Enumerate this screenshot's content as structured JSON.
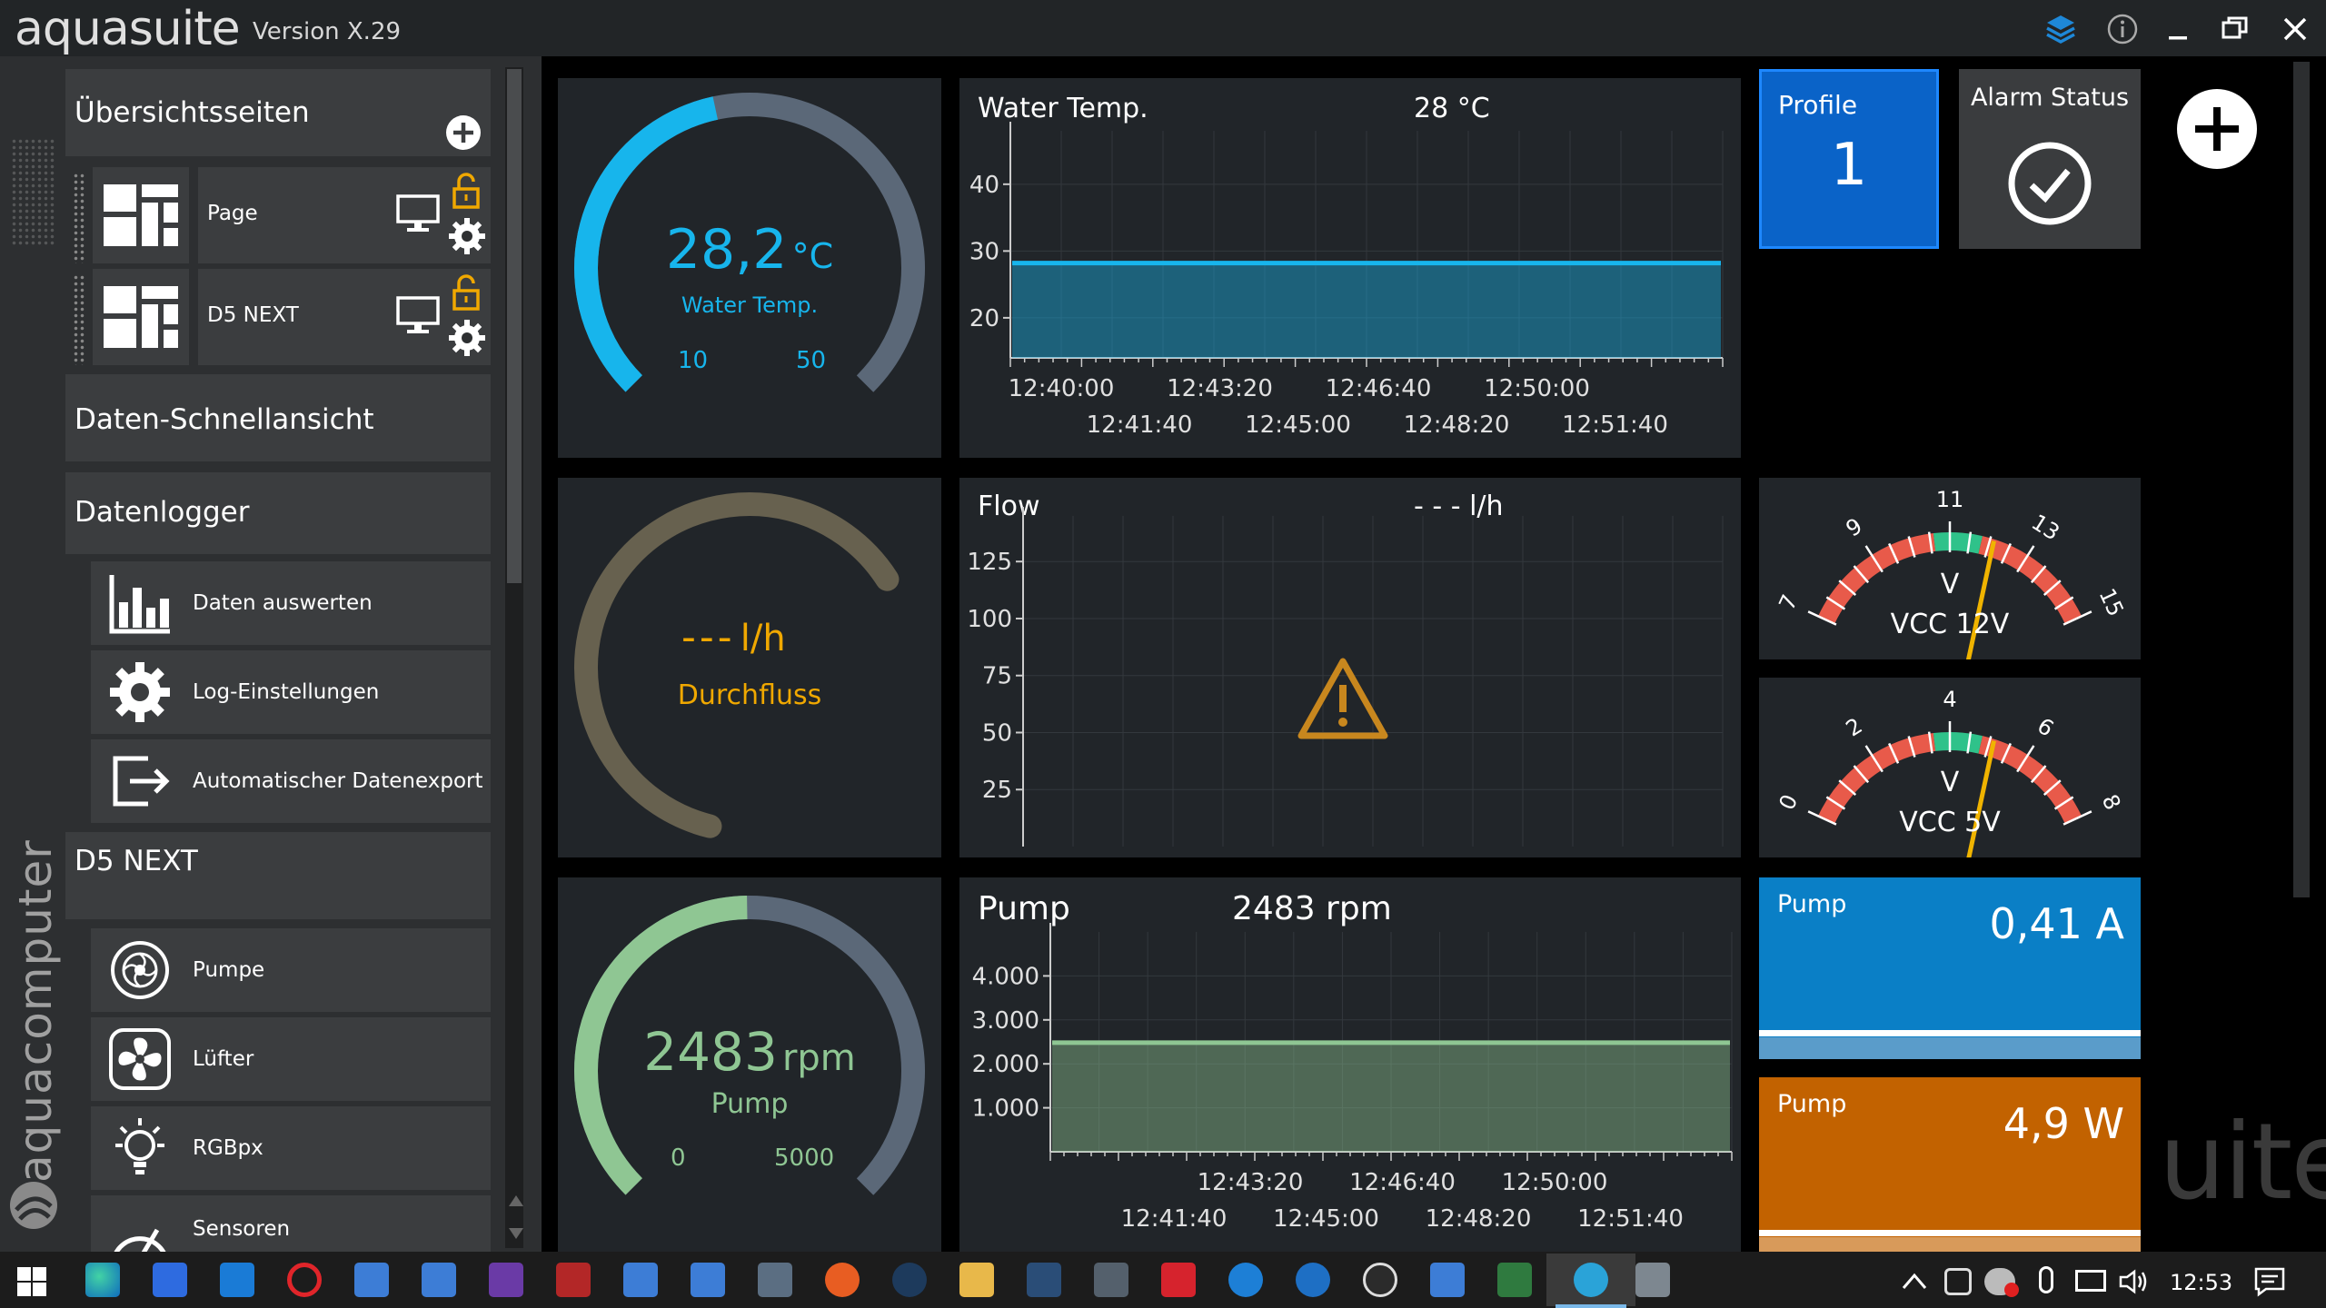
{
  "app": {
    "logo": "aquasuite",
    "version": "Version X.29"
  },
  "sidebar": {
    "overview": {
      "title": "Übersichtsseiten",
      "pages": [
        {
          "label": "Page"
        },
        {
          "label": "D5 NEXT"
        }
      ]
    },
    "quickview": {
      "title": "Daten-Schnellansicht"
    },
    "datalogger": {
      "title": "Datenlogger",
      "items": [
        {
          "label": "Daten auswerten",
          "icon": "bar-chart-icon"
        },
        {
          "label": "Log-Einstellungen",
          "icon": "gear-icon"
        },
        {
          "label": "Automatischer Datenexport",
          "icon": "export-icon"
        }
      ]
    },
    "device": {
      "title": "D5 NEXT",
      "items": [
        {
          "label": "Pumpe",
          "icon": "pump-icon"
        },
        {
          "label": "Lüfter",
          "icon": "fan-icon"
        },
        {
          "label": "RGBpx",
          "icon": "bulb-icon"
        },
        {
          "label": "Sensoren",
          "icon": "sensor-icon"
        }
      ]
    },
    "brand_vertical": "aquacomputer"
  },
  "gauges": {
    "water": {
      "value": "28,2",
      "unit": "°C",
      "label": "Water Temp.",
      "min": "10",
      "max": "50",
      "color": "#17b5ec",
      "fraction": 0.455
    },
    "flow": {
      "value": "---",
      "unit": "l/h",
      "label": "Durchfluss",
      "color": "#f0a800"
    },
    "pump": {
      "value": "2483",
      "unit": "rpm",
      "label": "Pump",
      "min": "0",
      "max": "5000",
      "color": "#8fc693",
      "fraction": 0.4966
    }
  },
  "charts": {
    "water": {
      "title": "Water Temp.",
      "value": "28 °C"
    },
    "flow": {
      "title": "Flow",
      "value": "- - - l/h"
    },
    "pump": {
      "title": "Pump",
      "value": "2483 rpm"
    }
  },
  "chart_data": [
    {
      "type": "area",
      "title": "Water Temp.",
      "value_label": "28 °C",
      "ylim": [
        14,
        48
      ],
      "yticks": [
        "40",
        "30",
        "20"
      ],
      "x_labels_top": [
        "12:40:00",
        "12:43:20",
        "12:46:40",
        "12:50:00"
      ],
      "x_labels_bottom": [
        "12:41:40",
        "12:45:00",
        "12:48:20",
        "12:51:40"
      ],
      "series": [
        {
          "values": [
            28.2,
            28.2,
            28.2,
            28.2,
            28.2,
            28.2,
            28.2,
            28.2
          ],
          "color": "#17b5ec"
        }
      ],
      "grid": true
    },
    {
      "type": "area",
      "title": "Flow",
      "value_label": "- - - l/h",
      "ylim": [
        0,
        145
      ],
      "yticks": [
        "125",
        "100",
        "75",
        "50",
        "25"
      ],
      "series": [],
      "warning": true,
      "grid": true
    },
    {
      "type": "area",
      "title": "Pump",
      "value_label": "2483 rpm",
      "ylim": [
        0,
        5000
      ],
      "yticks": [
        "4.000",
        "3.000",
        "2.000",
        "1.000"
      ],
      "x_labels_top": [
        "12:43:20",
        "12:46:40",
        "12:50:00"
      ],
      "x_labels_bottom": [
        "12:41:40",
        "12:45:00",
        "12:48:20",
        "12:51:40"
      ],
      "series": [
        {
          "values": [
            2483,
            2483,
            2483,
            2483,
            2483,
            2483,
            2483,
            2483
          ],
          "color": "#8fc693"
        }
      ],
      "grid": true
    }
  ],
  "tiles": {
    "profile": {
      "label": "Profile",
      "value": "1",
      "color": "#0a63c8"
    },
    "alarm": {
      "label": "Alarm Status",
      "icon": "check-circle-icon"
    },
    "pump_current": {
      "label": "Pump",
      "value": "0,41 A",
      "color": "#0a7fc6"
    },
    "pump_power": {
      "label": "Pump",
      "value": "4,9 W",
      "color": "#c26200"
    }
  },
  "meters": {
    "vcc12": {
      "ticks": [
        "7",
        "9",
        "11",
        "13",
        "15"
      ],
      "unit": "V",
      "label": "VCC 12V",
      "min": 7,
      "max": 15,
      "value": 12.1
    },
    "vcc5": {
      "ticks": [
        "0",
        "2",
        "4",
        "6",
        "8"
      ],
      "unit": "V",
      "label": "VCC 5V",
      "min": 0,
      "max": 8,
      "value": 5.1
    }
  },
  "watermark": "uite",
  "taskbar": {
    "time": "12:53"
  }
}
